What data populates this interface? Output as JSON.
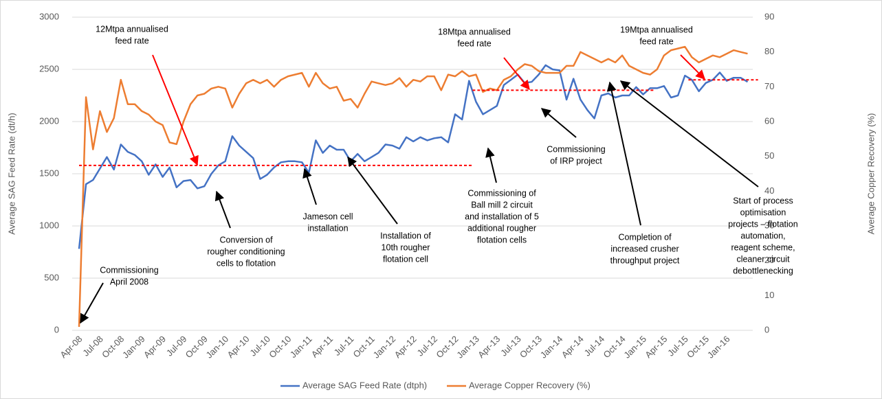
{
  "chart_data": {
    "type": "line",
    "y_label": "Average SAG Feed Rate (dt/h)",
    "y2_label": "Average Copper Recovery (%)",
    "categories": [
      "Apr-08",
      null,
      null,
      "Jul-08",
      null,
      null,
      "Oct-08",
      null,
      null,
      "Jan-09",
      null,
      null,
      "Apr-09",
      null,
      null,
      "Jul-09",
      null,
      null,
      "Oct-09",
      null,
      null,
      "Jan-10",
      null,
      null,
      "Apr-10",
      null,
      null,
      "Jul-10",
      null,
      null,
      "Oct-10",
      null,
      null,
      "Jan-11",
      null,
      null,
      "Apr-11",
      null,
      null,
      "Jul-11",
      null,
      null,
      "Oct-11",
      null,
      null,
      "Jan-12",
      null,
      null,
      "Apr-12",
      null,
      null,
      "Jul-12",
      null,
      null,
      "Oct-12",
      null,
      null,
      "Jan-13",
      null,
      null,
      "Apr-13",
      null,
      null,
      "Jul-13",
      null,
      null,
      "Oct-13",
      null,
      null,
      "Jan-14",
      null,
      null,
      "Apr-14",
      null,
      null,
      "Jul-14",
      null,
      null,
      "Oct-14",
      null,
      null,
      "Jan-15",
      null,
      null,
      "Apr-15",
      null,
      null,
      "Jul-15",
      null,
      null,
      "Oct-15",
      null,
      null,
      "Jan-16",
      null,
      null,
      null
    ],
    "series": [
      {
        "name": "Average SAG Feed Rate (dtph)",
        "color": "#4472c4",
        "axis": "y",
        "values": [
          780,
          1400,
          1440,
          1550,
          1660,
          1540,
          1780,
          1710,
          1680,
          1620,
          1490,
          1590,
          1470,
          1560,
          1370,
          1430,
          1440,
          1360,
          1380,
          1500,
          1580,
          1620,
          1860,
          1770,
          1710,
          1650,
          1450,
          1490,
          1560,
          1610,
          1620,
          1620,
          1610,
          1510,
          1820,
          1700,
          1770,
          1730,
          1730,
          1620,
          1690,
          1620,
          1660,
          1700,
          1780,
          1770,
          1740,
          1850,
          1810,
          1850,
          1820,
          1840,
          1850,
          1800,
          2070,
          2020,
          2390,
          2190,
          2070,
          2110,
          2150,
          2350,
          2400,
          2450,
          2370,
          2380,
          2450,
          2540,
          2500,
          2490,
          2210,
          2410,
          2210,
          2110,
          2030,
          2250,
          2270,
          2230,
          2250,
          2250,
          2330,
          2260,
          2320,
          2320,
          2340,
          2230,
          2250,
          2440,
          2400,
          2290,
          2370,
          2400,
          2470,
          2390,
          2420,
          2420,
          2380
        ]
      },
      {
        "name": "Average Copper Recovery (%)",
        "color": "#ed7d31",
        "axis": "y2",
        "values": [
          1,
          67,
          52,
          63,
          57,
          61,
          72,
          65,
          65,
          63,
          62,
          60,
          59,
          54,
          53.5,
          60,
          65,
          67.5,
          68,
          69.5,
          70,
          69.5,
          64,
          68,
          71,
          72,
          71,
          72,
          70,
          72,
          73,
          73.5,
          74,
          70,
          74,
          71,
          69.5,
          70,
          66,
          66.5,
          64,
          68,
          71.5,
          71,
          70.5,
          71,
          72.5,
          70,
          72,
          71.5,
          73,
          73,
          69,
          73.5,
          73,
          74.5,
          73,
          73.5,
          68.5,
          69.5,
          69,
          72,
          73,
          75,
          76.5,
          76,
          74.5,
          74,
          74,
          74,
          76,
          76,
          80,
          79,
          78,
          77,
          78,
          77,
          79,
          76,
          75,
          74,
          73.5,
          75,
          79,
          80.5,
          81,
          81.5,
          78.5,
          77,
          78,
          79,
          78.5,
          79.5,
          80.5,
          80,
          79.5
        ]
      }
    ],
    "ylim": [
      0,
      3000
    ],
    "yticks": [
      0,
      500,
      1000,
      1500,
      2000,
      2500,
      3000
    ],
    "y2lim": [
      0,
      90
    ],
    "y2ticks": [
      0,
      10,
      20,
      30,
      40,
      50,
      60,
      70,
      80,
      90
    ],
    "grid": true,
    "legend": "bottom",
    "reference_lines": [
      {
        "value": 1580,
        "color": "#ff0000"
      },
      {
        "value": 2300,
        "color": "#ff0000"
      },
      {
        "value": 2400,
        "color": "#ff0000"
      }
    ],
    "annotations": [
      {
        "lines": [
          "Commissioning",
          "April 2008"
        ],
        "arrow_color": "#000000"
      },
      {
        "lines": [
          "12Mtpa annualised",
          "feed rate"
        ],
        "arrow_color": "#ff0000"
      },
      {
        "lines": [
          "Conversion of",
          "rougher conditioning",
          "cells to flotation"
        ],
        "arrow_color": "#000000"
      },
      {
        "lines": [
          "Jameson cell",
          "installation"
        ],
        "arrow_color": "#000000"
      },
      {
        "lines": [
          "Installation of",
          "10th rougher",
          "flotation cell"
        ],
        "arrow_color": "#000000"
      },
      {
        "lines": [
          "Commissioning of",
          "Ball mill 2 circuit",
          "and installation of 5",
          "additional rougher",
          "flotation cells"
        ],
        "arrow_color": "#000000"
      },
      {
        "lines": [
          "18Mtpa annualised",
          "feed rate"
        ],
        "arrow_color": "#ff0000"
      },
      {
        "lines": [
          "Commissioning",
          "of IRP project"
        ],
        "arrow_color": "#000000"
      },
      {
        "lines": [
          "Completion of",
          "increased crusher",
          "throughput project"
        ],
        "arrow_color": "#000000"
      },
      {
        "lines": [
          "19Mtpa annualised",
          "feed rate"
        ],
        "arrow_color": "#ff0000"
      },
      {
        "lines": [
          "Start of process",
          "optimisation",
          "projects – flotation",
          "automation,",
          "reagent scheme,",
          "cleaner circuit",
          "debottlenecking"
        ],
        "arrow_color": "#000000"
      }
    ]
  }
}
